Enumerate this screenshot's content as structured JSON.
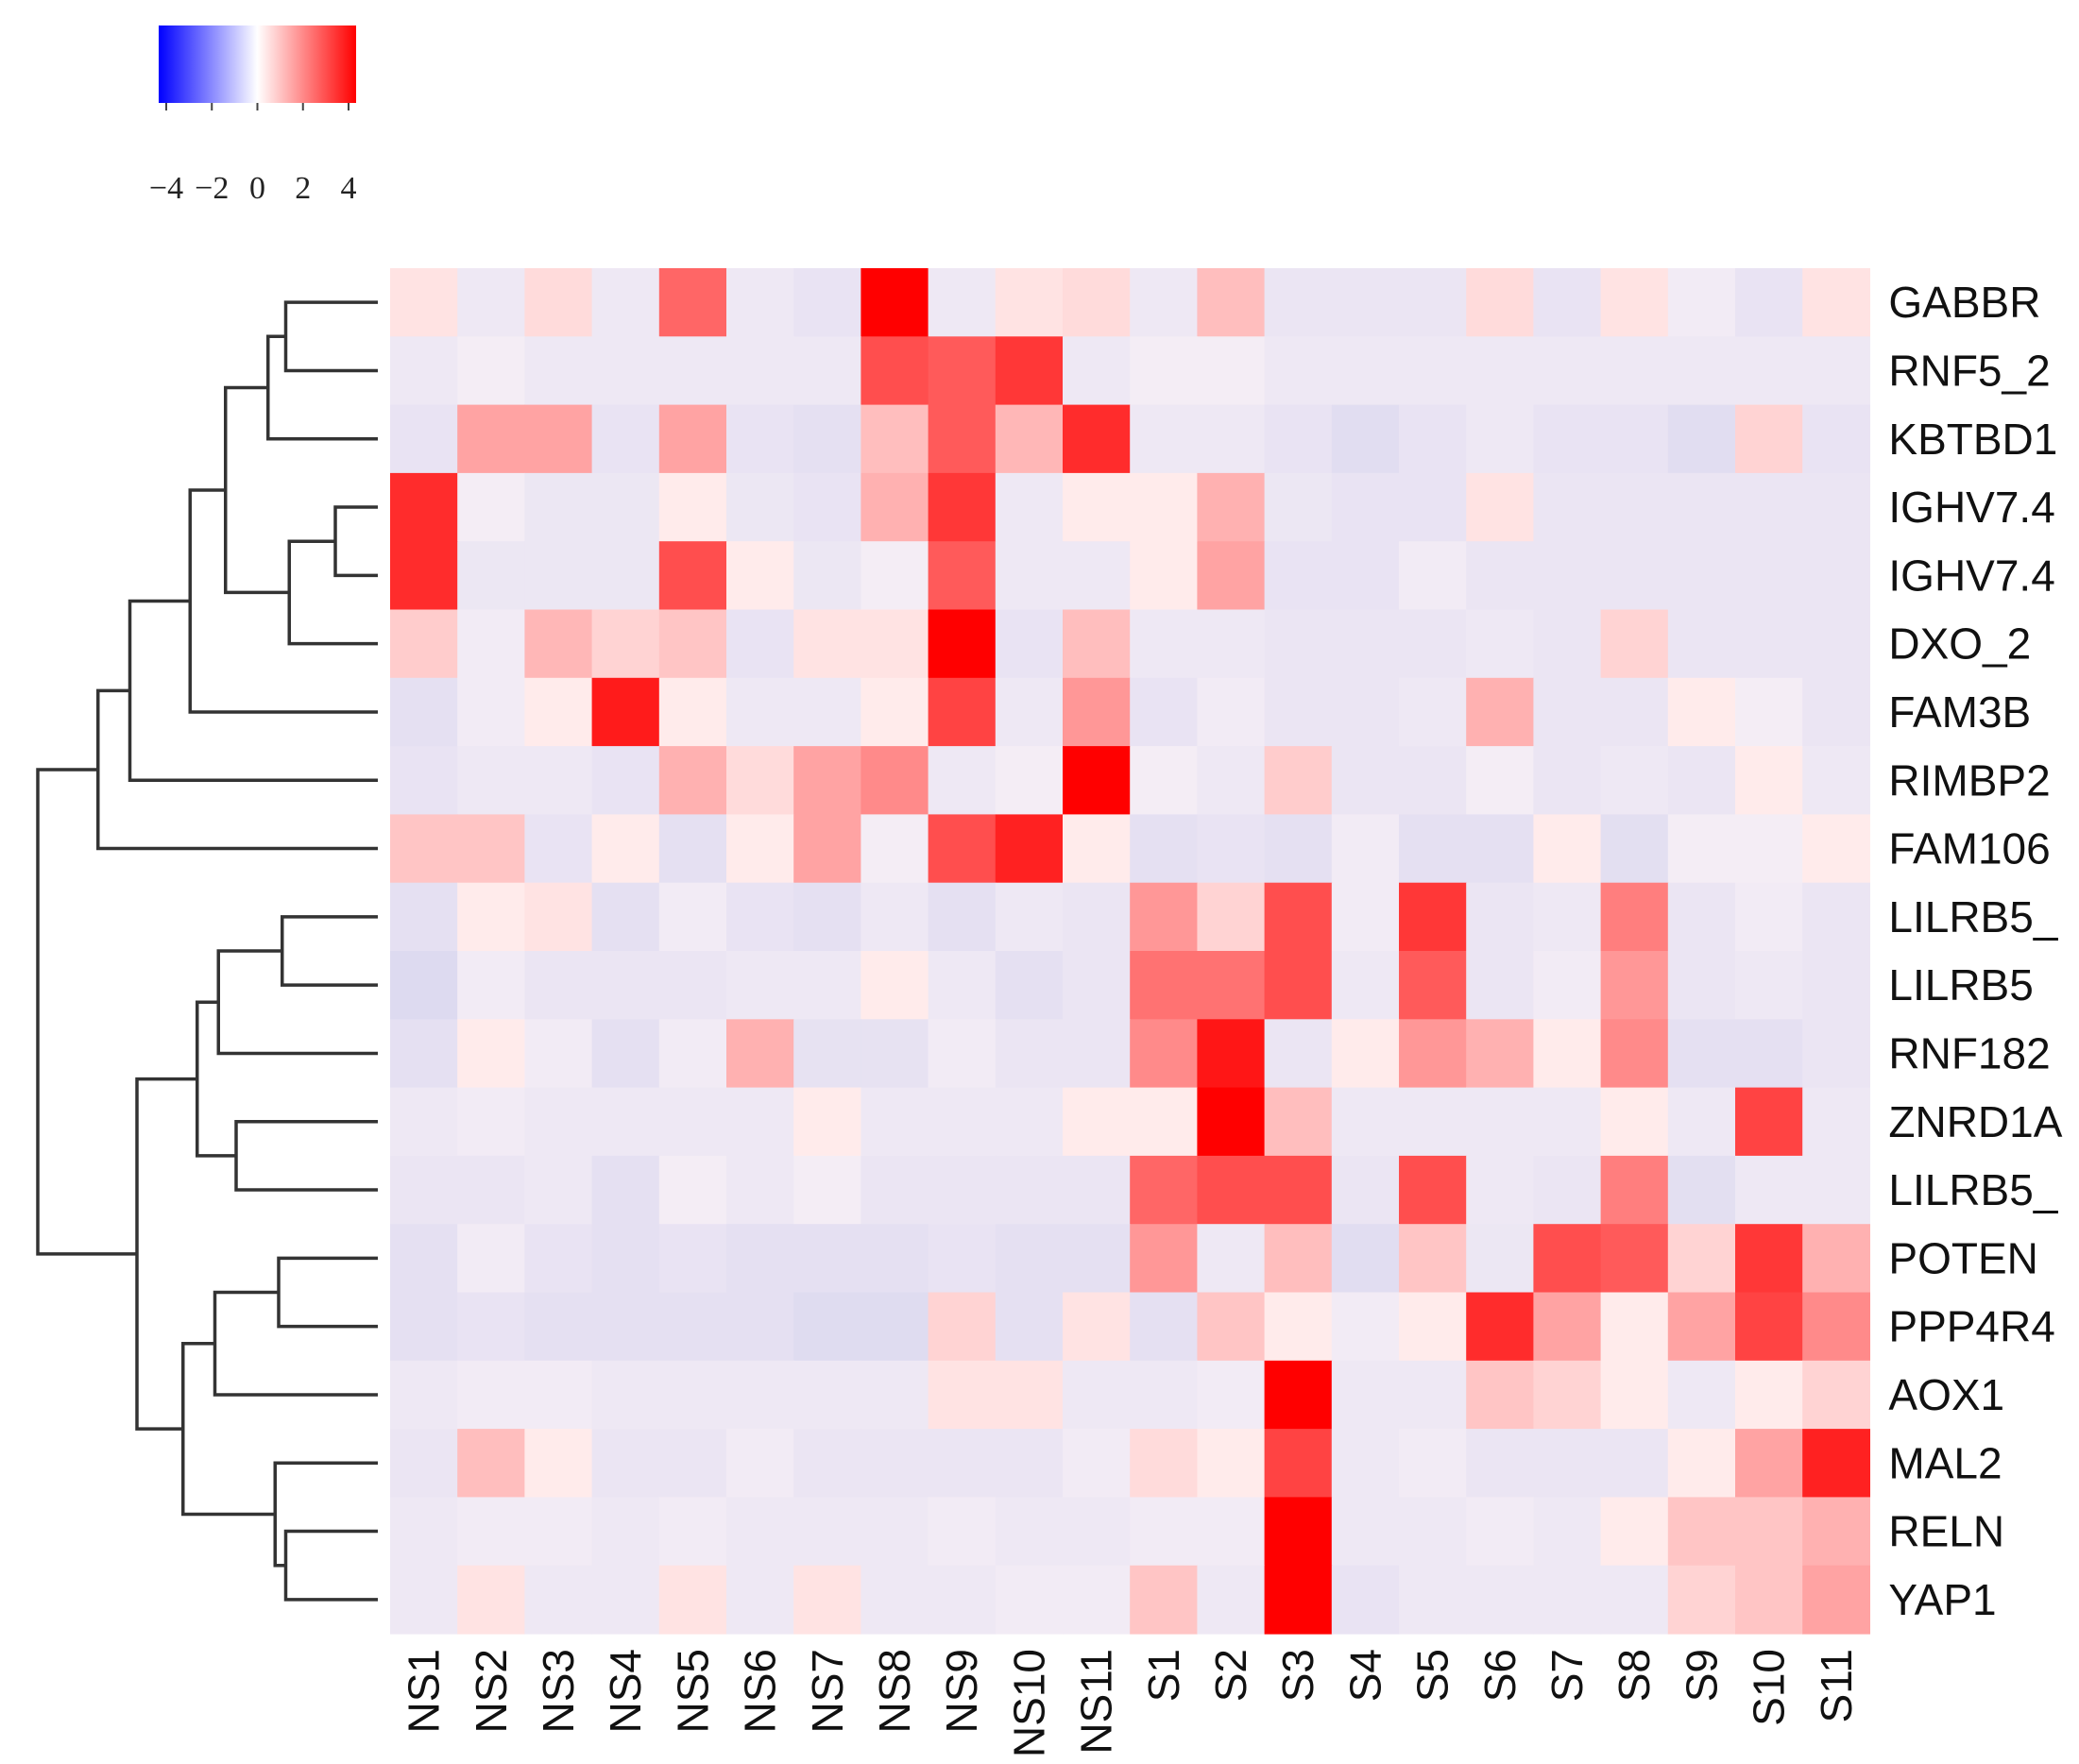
{
  "chart_data": {
    "type": "heatmap",
    "title": "",
    "colormap": {
      "low": "#0000ff",
      "mid": "#ffffff",
      "high": "#ff0000"
    },
    "value_range": [
      -4,
      4
    ],
    "colorbar": {
      "ticks": [
        -4,
        -2,
        0,
        2,
        4
      ],
      "tick_labels": [
        "−4",
        "−2",
        "0",
        "2",
        "4"
      ]
    },
    "columns": [
      "NS1",
      "NS2",
      "NS3",
      "NS4",
      "NS5",
      "NS6",
      "NS7",
      "NS8",
      "NS9",
      "NS10",
      "NS11",
      "S1",
      "S2",
      "S3",
      "S4",
      "S5",
      "S6",
      "S7",
      "S8",
      "S9",
      "S10",
      "S11"
    ],
    "rows": [
      "GABBR",
      "RNF5_2",
      "KBTBD1",
      "IGHV7.4",
      "IGHV7.4",
      "DXO_2",
      "FAM3B",
      "RIMBP2",
      "FAM106",
      "LILRB5_",
      "LILRB5",
      "RNF182",
      "ZNRD1A",
      "LILRB5_",
      "POTEN",
      "PPP4R4",
      "AOX1",
      "MAL2",
      "RELN",
      "YAP1"
    ],
    "values": [
      [
        0.3,
        -0.5,
        0.4,
        -0.5,
        2.2,
        -0.5,
        -0.8,
        4.2,
        -0.5,
        0.3,
        0.4,
        -0.5,
        0.8,
        -0.7,
        -0.7,
        -0.7,
        0.4,
        -0.8,
        0.3,
        -0.3,
        -0.8,
        0.3
      ],
      [
        -0.5,
        -0.2,
        -0.5,
        -0.5,
        -0.5,
        -0.5,
        -0.5,
        2.6,
        2.4,
        3.0,
        -0.5,
        -0.2,
        -0.2,
        -0.5,
        -0.5,
        -0.5,
        -0.5,
        -0.5,
        -0.5,
        -0.5,
        -0.5,
        -0.5
      ],
      [
        -0.8,
        1.2,
        1.2,
        -0.8,
        1.2,
        -0.8,
        -1.0,
        0.8,
        2.4,
        0.9,
        3.2,
        -0.5,
        -0.5,
        -0.8,
        -1.2,
        -0.8,
        -0.5,
        -0.8,
        -0.8,
        -1.2,
        0.5,
        -0.8
      ],
      [
        3.2,
        -0.2,
        -0.6,
        -0.6,
        0.2,
        -0.6,
        -0.8,
        1.0,
        3.0,
        -0.5,
        0.2,
        0.2,
        1.0,
        -0.6,
        -0.8,
        -0.8,
        0.3,
        -0.7,
        -0.7,
        -0.7,
        -0.7,
        -0.7
      ],
      [
        3.2,
        -0.6,
        -0.6,
        -0.6,
        2.6,
        0.2,
        -0.6,
        -0.2,
        2.4,
        -0.5,
        -0.5,
        0.2,
        1.2,
        -0.8,
        -0.8,
        -0.3,
        -0.7,
        -0.7,
        -0.7,
        -0.7,
        -0.7,
        -0.7
      ],
      [
        0.6,
        -0.3,
        0.9,
        0.5,
        0.7,
        -0.8,
        0.3,
        0.3,
        4.5,
        -0.8,
        0.8,
        -0.5,
        -0.5,
        -0.7,
        -0.7,
        -0.7,
        -0.5,
        -0.7,
        0.5,
        -0.7,
        -0.7,
        -0.7
      ],
      [
        -1.0,
        -0.3,
        0.2,
        3.5,
        0.2,
        -0.5,
        -0.5,
        0.2,
        2.8,
        -0.5,
        1.4,
        -0.8,
        -0.3,
        -0.7,
        -0.7,
        -0.5,
        1.0,
        -0.7,
        -0.7,
        0.2,
        -0.2,
        -0.7
      ],
      [
        -0.8,
        -0.5,
        -0.5,
        -0.8,
        1.0,
        0.4,
        1.2,
        1.6,
        -0.5,
        -0.2,
        4.0,
        -0.2,
        -0.5,
        0.6,
        -0.7,
        -0.7,
        -0.2,
        -0.7,
        -0.5,
        -0.7,
        0.2,
        -0.5
      ],
      [
        0.7,
        0.7,
        -0.8,
        0.2,
        -1.0,
        0.2,
        1.2,
        -0.2,
        2.6,
        3.4,
        0.2,
        -1.0,
        -0.8,
        -1.0,
        -0.3,
        -1.0,
        -1.0,
        0.2,
        -1.1,
        -0.2,
        -0.2,
        0.2
      ],
      [
        -1.0,
        0.2,
        0.3,
        -1.0,
        -0.3,
        -0.8,
        -1.0,
        -0.5,
        -1.0,
        -0.5,
        -0.7,
        1.4,
        0.5,
        2.6,
        -0.3,
        3.0,
        -0.7,
        -0.5,
        1.8,
        -0.7,
        -0.3,
        -0.7
      ],
      [
        -1.4,
        -0.3,
        -0.7,
        -0.7,
        -0.7,
        -0.5,
        -0.5,
        0.2,
        -0.5,
        -1.0,
        -0.7,
        2.0,
        2.0,
        2.6,
        -0.5,
        2.4,
        -0.7,
        -0.3,
        1.4,
        -0.7,
        -0.5,
        -0.7
      ],
      [
        -1.0,
        0.2,
        -0.3,
        -1.0,
        -0.3,
        1.0,
        -0.9,
        -0.9,
        -0.3,
        -0.7,
        -0.7,
        1.6,
        3.6,
        -0.7,
        0.2,
        1.4,
        1.0,
        0.2,
        1.6,
        -1.0,
        -1.0,
        -0.7
      ],
      [
        -0.5,
        -0.3,
        -0.5,
        -0.5,
        -0.5,
        -0.5,
        0.2,
        -0.5,
        -0.5,
        -0.5,
        0.2,
        0.2,
        4.0,
        0.8,
        -0.5,
        -0.5,
        -0.5,
        -0.5,
        0.2,
        -0.5,
        2.8,
        -0.5
      ],
      [
        -0.7,
        -0.7,
        -0.5,
        -1.0,
        -0.2,
        -0.5,
        -0.2,
        -0.7,
        -0.7,
        -0.7,
        -0.7,
        2.2,
        2.6,
        2.6,
        -0.7,
        2.6,
        -0.5,
        -0.7,
        1.8,
        -1.1,
        -0.5,
        -0.5
      ],
      [
        -1.0,
        -0.3,
        -0.8,
        -1.0,
        -0.8,
        -1.0,
        -1.0,
        -1.0,
        -0.8,
        -1.0,
        -1.0,
        1.4,
        -0.5,
        0.8,
        -1.2,
        0.7,
        -0.6,
        2.6,
        2.4,
        0.5,
        3.0,
        1.0
      ],
      [
        -1.0,
        -0.8,
        -1.0,
        -1.0,
        -1.0,
        -1.0,
        -1.3,
        -1.3,
        0.5,
        -1.0,
        0.3,
        -1.0,
        0.7,
        0.2,
        -0.3,
        0.2,
        3.2,
        1.2,
        0.2,
        1.2,
        2.8,
        1.6
      ],
      [
        -0.5,
        -0.3,
        -0.3,
        -0.5,
        -0.5,
        -0.5,
        -0.5,
        -0.5,
        0.3,
        0.3,
        -0.5,
        -0.5,
        -0.3,
        4.5,
        -0.5,
        -0.5,
        0.7,
        0.5,
        0.2,
        -0.5,
        0.2,
        0.5
      ],
      [
        -0.7,
        0.8,
        0.2,
        -0.7,
        -0.7,
        -0.3,
        -0.7,
        -0.7,
        -0.7,
        -0.7,
        -0.3,
        0.4,
        0.2,
        2.8,
        -0.5,
        -0.3,
        -0.7,
        -0.7,
        -0.7,
        0.2,
        1.2,
        3.4
      ],
      [
        -0.5,
        -0.3,
        -0.3,
        -0.5,
        -0.3,
        -0.5,
        -0.5,
        -0.5,
        -0.3,
        -0.5,
        -0.5,
        -0.3,
        -0.3,
        4.5,
        -0.5,
        -0.5,
        -0.3,
        -0.5,
        0.2,
        0.7,
        0.7,
        1.0
      ],
      [
        -0.5,
        0.3,
        -0.5,
        -0.5,
        0.3,
        -0.5,
        0.3,
        -0.5,
        -0.5,
        -0.3,
        -0.3,
        0.7,
        -0.5,
        4.5,
        -0.8,
        -0.5,
        -0.5,
        -0.5,
        -0.5,
        0.5,
        0.7,
        1.2
      ]
    ]
  }
}
